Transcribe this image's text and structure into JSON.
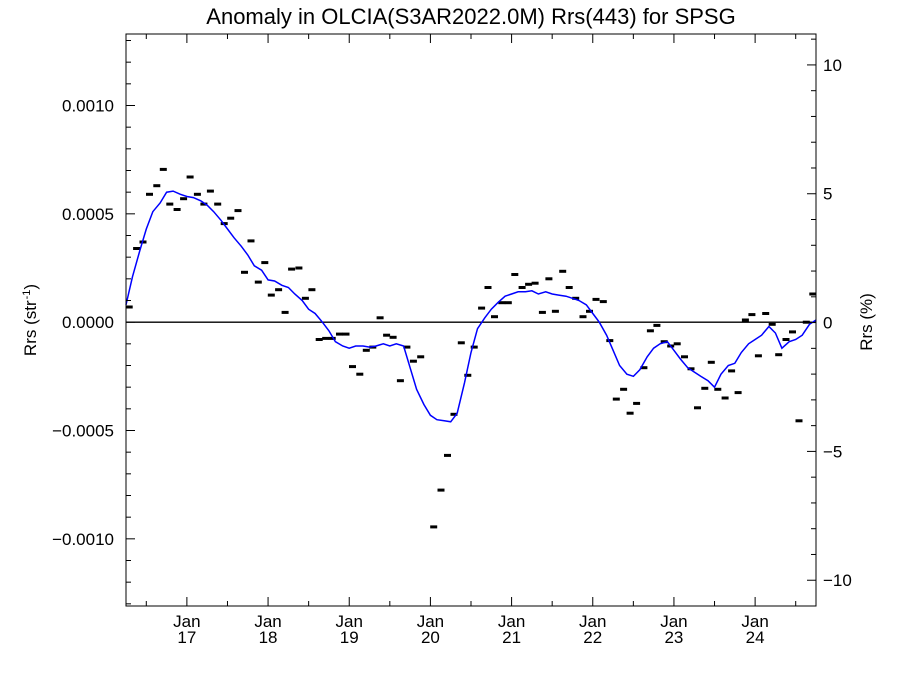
{
  "chart_data": {
    "type": "scatter",
    "title": "Anomaly in OLCIA(S3AR2022.0M) Rrs(443) for SPSG",
    "ylabel": "Rrs (str",
    "ylabel_superscript": "-1",
    "ylabel_suffix": ")",
    "y2label": "Rrs (%)",
    "ylim": [
      -0.00131,
      0.00133
    ],
    "y2lim": [
      -11.0,
      11.2
    ],
    "xlim": [
      2016.25,
      2024.75
    ],
    "x_tick_labels": [
      {
        "month": "Jan",
        "year": "17",
        "x": 2017.0
      },
      {
        "month": "Jan",
        "year": "18",
        "x": 2018.0
      },
      {
        "month": "Jan",
        "year": "19",
        "x": 2019.0
      },
      {
        "month": "Jan",
        "year": "20",
        "x": 2020.0
      },
      {
        "month": "Jan",
        "year": "21",
        "x": 2021.0
      },
      {
        "month": "Jan",
        "year": "22",
        "x": 2022.0
      },
      {
        "month": "Jan",
        "year": "23",
        "x": 2023.0
      },
      {
        "month": "Jan",
        "year": "24",
        "x": 2024.0
      }
    ],
    "y_ticks": [
      {
        "value": 0.001,
        "label": "0.0010"
      },
      {
        "value": 0.0005,
        "label": "0.0005"
      },
      {
        "value": 0.0,
        "label": "0.0000"
      },
      {
        "value": -0.0005,
        "label": "−0.0005"
      },
      {
        "value": -0.001,
        "label": "−0.0010"
      }
    ],
    "y2_ticks": [
      {
        "value": 10,
        "label": "10"
      },
      {
        "value": 5,
        "label": "5"
      },
      {
        "value": 0,
        "label": "0"
      },
      {
        "value": -5,
        "label": "−5"
      },
      {
        "value": -10,
        "label": "−10"
      }
    ],
    "zero_line": true,
    "series": [
      {
        "kind": "monthly-anomaly",
        "color": "#000000",
        "points": [
          [
            2016.29,
            7e-05
          ],
          [
            2016.38,
            0.00034
          ],
          [
            2016.46,
            0.00037
          ],
          [
            2016.54,
            0.00059
          ],
          [
            2016.63,
            0.00063
          ],
          [
            2016.71,
            0.000705
          ],
          [
            2016.79,
            0.000545
          ],
          [
            2016.88,
            0.00052
          ],
          [
            2016.96,
            0.00057
          ],
          [
            2017.04,
            0.00067
          ],
          [
            2017.13,
            0.00059
          ],
          [
            2017.21,
            0.000545
          ],
          [
            2017.29,
            0.000605
          ],
          [
            2017.38,
            0.000545
          ],
          [
            2017.46,
            0.000455
          ],
          [
            2017.54,
            0.00048
          ],
          [
            2017.63,
            0.000515
          ],
          [
            2017.71,
            0.00023
          ],
          [
            2017.79,
            0.000375
          ],
          [
            2017.88,
            0.000185
          ],
          [
            2017.96,
            0.000275
          ],
          [
            2018.04,
            0.000125
          ],
          [
            2018.13,
            0.00015
          ],
          [
            2018.21,
            4.5e-05
          ],
          [
            2018.29,
            0.000245
          ],
          [
            2018.38,
            0.00025
          ],
          [
            2018.46,
            0.00011
          ],
          [
            2018.54,
            0.00015
          ],
          [
            2018.63,
            -8e-05
          ],
          [
            2018.71,
            -7.5e-05
          ],
          [
            2018.79,
            -7.5e-05
          ],
          [
            2018.88,
            -5.5e-05
          ],
          [
            2018.96,
            -5.5e-05
          ],
          [
            2019.04,
            -0.000205
          ],
          [
            2019.13,
            -0.00024
          ],
          [
            2019.21,
            -0.00013
          ],
          [
            2019.29,
            -0.000115
          ],
          [
            2019.38,
            2e-05
          ],
          [
            2019.46,
            -6e-05
          ],
          [
            2019.54,
            -7e-05
          ],
          [
            2019.63,
            -0.00027
          ],
          [
            2019.71,
            -0.000115
          ],
          [
            2019.79,
            -0.00018
          ],
          [
            2019.88,
            -0.00016
          ],
          [
            2020.04,
            -0.000945
          ],
          [
            2020.13,
            -0.000775
          ],
          [
            2020.21,
            -0.000615
          ],
          [
            2020.29,
            -0.000425
          ],
          [
            2020.38,
            -9.5e-05
          ],
          [
            2020.46,
            -0.000245
          ],
          [
            2020.54,
            -0.000115
          ],
          [
            2020.63,
            6.5e-05
          ],
          [
            2020.71,
            0.00016
          ],
          [
            2020.79,
            2.5e-05
          ],
          [
            2020.88,
            9e-05
          ],
          [
            2020.96,
            9e-05
          ],
          [
            2021.04,
            0.00022
          ],
          [
            2021.13,
            0.00016
          ],
          [
            2021.21,
            0.000175
          ],
          [
            2021.29,
            0.00018
          ],
          [
            2021.38,
            4.5e-05
          ],
          [
            2021.46,
            0.0002
          ],
          [
            2021.54,
            5e-05
          ],
          [
            2021.63,
            0.000235
          ],
          [
            2021.71,
            0.00016
          ],
          [
            2021.79,
            0.00011
          ],
          [
            2021.88,
            2.5e-05
          ],
          [
            2021.96,
            5e-05
          ],
          [
            2022.04,
            0.000105
          ],
          [
            2022.13,
            9.5e-05
          ],
          [
            2022.21,
            -8.5e-05
          ],
          [
            2022.29,
            -0.000355
          ],
          [
            2022.38,
            -0.00031
          ],
          [
            2022.46,
            -0.00042
          ],
          [
            2022.54,
            -0.000375
          ],
          [
            2022.63,
            -0.00021
          ],
          [
            2022.71,
            -4e-05
          ],
          [
            2022.79,
            -1.5e-05
          ],
          [
            2022.88,
            -9e-05
          ],
          [
            2022.96,
            -0.00011
          ],
          [
            2023.04,
            -0.0001
          ],
          [
            2023.13,
            -0.00016
          ],
          [
            2023.21,
            -0.000215
          ],
          [
            2023.29,
            -0.000395
          ],
          [
            2023.38,
            -0.000305
          ],
          [
            2023.46,
            -0.000185
          ],
          [
            2023.54,
            -0.00031
          ],
          [
            2023.63,
            -0.00035
          ],
          [
            2023.71,
            -0.000225
          ],
          [
            2023.79,
            -0.000325
          ],
          [
            2023.88,
            1e-05
          ],
          [
            2023.96,
            3.5e-05
          ],
          [
            2024.04,
            -0.000155
          ],
          [
            2024.13,
            4e-05
          ],
          [
            2024.21,
            -1e-05
          ],
          [
            2024.29,
            -0.00015
          ],
          [
            2024.38,
            -8e-05
          ],
          [
            2024.46,
            -4.5e-05
          ],
          [
            2024.54,
            -0.000455
          ],
          [
            2024.63,
            0.0
          ],
          [
            2024.71,
            0.00013
          ]
        ]
      },
      {
        "kind": "running-mean",
        "color": "#0000ff",
        "points": [
          [
            2016.25,
            8e-05
          ],
          [
            2016.33,
            0.00021
          ],
          [
            2016.42,
            0.00033
          ],
          [
            2016.5,
            0.00043
          ],
          [
            2016.58,
            0.00051
          ],
          [
            2016.67,
            0.00055
          ],
          [
            2016.75,
            0.0006
          ],
          [
            2016.83,
            0.000605
          ],
          [
            2016.92,
            0.00059
          ],
          [
            2017.0,
            0.00058
          ],
          [
            2017.08,
            0.000575
          ],
          [
            2017.17,
            0.00056
          ],
          [
            2017.25,
            0.00054
          ],
          [
            2017.33,
            0.00051
          ],
          [
            2017.42,
            0.00047
          ],
          [
            2017.5,
            0.00043
          ],
          [
            2017.58,
            0.00039
          ],
          [
            2017.67,
            0.00035
          ],
          [
            2017.75,
            0.00031
          ],
          [
            2017.83,
            0.00026
          ],
          [
            2017.92,
            0.00024
          ],
          [
            2018.0,
            0.000195
          ],
          [
            2018.08,
            0.00019
          ],
          [
            2018.17,
            0.00017
          ],
          [
            2018.25,
            0.00016
          ],
          [
            2018.33,
            0.00013
          ],
          [
            2018.42,
            0.0001
          ],
          [
            2018.5,
            6e-05
          ],
          [
            2018.58,
            4e-05
          ],
          [
            2018.67,
            0.0
          ],
          [
            2018.75,
            -4e-05
          ],
          [
            2018.83,
            -9e-05
          ],
          [
            2018.92,
            -0.00011
          ],
          [
            2019.0,
            -0.00012
          ],
          [
            2019.08,
            -0.00011
          ],
          [
            2019.17,
            -0.00011
          ],
          [
            2019.25,
            -0.000115
          ],
          [
            2019.33,
            -0.00011
          ],
          [
            2019.42,
            -0.0001
          ],
          [
            2019.5,
            -0.00011
          ],
          [
            2019.58,
            -0.0001
          ],
          [
            2019.67,
            -0.00011
          ],
          [
            2019.75,
            -0.00021
          ],
          [
            2019.83,
            -0.00031
          ],
          [
            2019.92,
            -0.00038
          ],
          [
            2020.0,
            -0.00043
          ],
          [
            2020.08,
            -0.00045
          ],
          [
            2020.17,
            -0.000455
          ],
          [
            2020.25,
            -0.00046
          ],
          [
            2020.33,
            -0.00042
          ],
          [
            2020.42,
            -0.00028
          ],
          [
            2020.5,
            -0.00014
          ],
          [
            2020.58,
            -3e-05
          ],
          [
            2020.67,
            2e-05
          ],
          [
            2020.75,
            6e-05
          ],
          [
            2020.83,
            9e-05
          ],
          [
            2020.92,
            0.00012
          ],
          [
            2021.0,
            0.00013
          ],
          [
            2021.08,
            0.00014
          ],
          [
            2021.17,
            0.00014
          ],
          [
            2021.25,
            0.000145
          ],
          [
            2021.33,
            0.00013
          ],
          [
            2021.42,
            0.00014
          ],
          [
            2021.5,
            0.00013
          ],
          [
            2021.58,
            0.000125
          ],
          [
            2021.67,
            0.00012
          ],
          [
            2021.75,
            0.00011
          ],
          [
            2021.83,
            0.0001
          ],
          [
            2021.92,
            8e-05
          ],
          [
            2022.0,
            4e-05
          ],
          [
            2022.08,
            0.0
          ],
          [
            2022.17,
            -6e-05
          ],
          [
            2022.25,
            -0.00013
          ],
          [
            2022.33,
            -0.0002
          ],
          [
            2022.42,
            -0.00024
          ],
          [
            2022.5,
            -0.00025
          ],
          [
            2022.58,
            -0.00022
          ],
          [
            2022.67,
            -0.00016
          ],
          [
            2022.75,
            -0.00012
          ],
          [
            2022.83,
            -0.0001
          ],
          [
            2022.92,
            -9e-05
          ],
          [
            2023.0,
            -0.00013
          ],
          [
            2023.08,
            -0.00017
          ],
          [
            2023.17,
            -0.00021
          ],
          [
            2023.25,
            -0.00023
          ],
          [
            2023.33,
            -0.00025
          ],
          [
            2023.42,
            -0.00027
          ],
          [
            2023.5,
            -0.0003
          ],
          [
            2023.58,
            -0.00024
          ],
          [
            2023.67,
            -0.0002
          ],
          [
            2023.75,
            -0.00019
          ],
          [
            2023.83,
            -0.00014
          ],
          [
            2023.92,
            -0.0001
          ],
          [
            2024.0,
            -8e-05
          ],
          [
            2024.08,
            -6e-05
          ],
          [
            2024.17,
            -2e-05
          ],
          [
            2024.25,
            -5e-05
          ],
          [
            2024.33,
            -0.00012
          ],
          [
            2024.42,
            -9e-05
          ],
          [
            2024.5,
            -8e-05
          ],
          [
            2024.58,
            -6e-05
          ],
          [
            2024.67,
            -1e-05
          ],
          [
            2024.75,
            1e-05
          ]
        ]
      }
    ]
  }
}
